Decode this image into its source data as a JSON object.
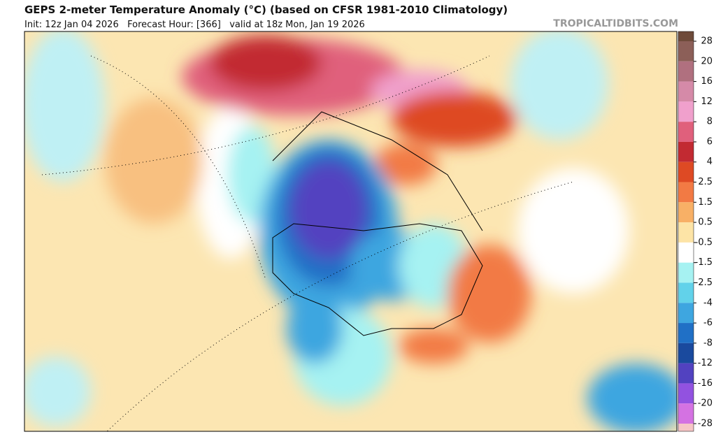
{
  "header": {
    "title": "GEPS 2-meter Temperature Anomaly (°C) (based on CFSR 1981-2010 Climatology)",
    "subtitle": "Init: 12z Jan 04 2026   Forecast Hour: [366]   valid at 18z Mon, Jan 19 2026",
    "source": "TROPICALTIDBITS.COM"
  },
  "colorbar": {
    "levels": [
      28,
      20,
      16,
      12,
      8,
      6,
      4,
      2.5,
      1.5,
      0.5,
      -0.5,
      -1.5,
      -2.5,
      -4,
      -6,
      -8,
      -12,
      -16,
      -20,
      -28
    ],
    "colors": [
      "#6e4b3a",
      "#8c5f58",
      "#b0707f",
      "#d58aa8",
      "#f0a0cc",
      "#e0607c",
      "#c22a32",
      "#de4a24",
      "#f27a44",
      "#f8b066",
      "#fde4a6",
      "#ffffff",
      "#a6f2f2",
      "#62d2ea",
      "#3ea6e0",
      "#2070c6",
      "#1a4a9e",
      "#5242c0",
      "#9252e0",
      "#d472e2",
      "#f6c6c6"
    ]
  }
}
